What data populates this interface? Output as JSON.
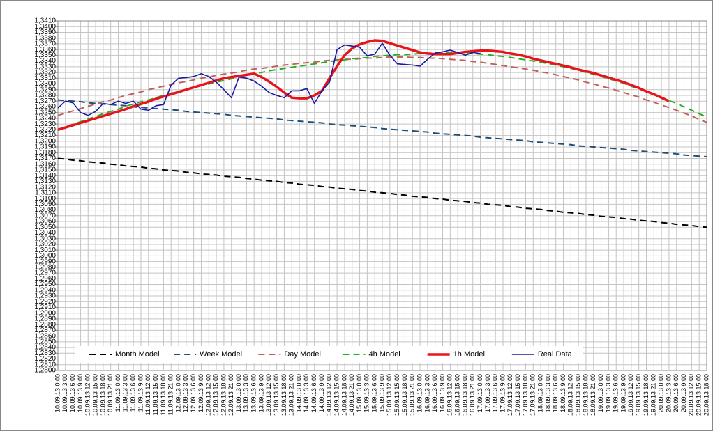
{
  "chart_data": {
    "type": "line",
    "categories": [
      "10.09.13 0:00",
      "10.09.13 3:00",
      "10.09.13 6:00",
      "10.09.13 9:00",
      "10.09.13 12:00",
      "10.09.13 15:00",
      "10.09.13 18:00",
      "10.09.13 21:00",
      "11.09.13 0:00",
      "11.09.13 3:00",
      "11.09.13 6:00",
      "11.09.13 9:00",
      "11.09.13 12:00",
      "11.09.13 15:00",
      "11.09.13 18:00",
      "11.09.13 21:00",
      "12.09.13 0:00",
      "12.09.13 3:00",
      "12.09.13 6:00",
      "12.09.13 9:00",
      "12.09.13 12:00",
      "12.09.13 15:00",
      "12.09.13 18:00",
      "12.09.13 21:00",
      "13.09.13 0:00",
      "13.09.13 3:00",
      "13.09.13 6:00",
      "13.09.13 9:00",
      "13.09.13 12:00",
      "13.09.13 15:00",
      "13.09.13 18:00",
      "13.09.13 21:00",
      "14.09.13 0:00",
      "14.09.13 3:00",
      "14.09.13 6:00",
      "14.09.13 9:00",
      "14.09.13 12:00",
      "14.09.13 15:00",
      "14.09.13 18:00",
      "14.09.13 21:00",
      "15.09.13 0:00",
      "15.09.13 3:00",
      "15.09.13 6:00",
      "15.09.13 9:00",
      "15.09.13 12:00",
      "15.09.13 15:00",
      "15.09.13 18:00",
      "15.09.13 21:00",
      "16.09.13 0:00",
      "16.09.13 3:00",
      "16.09.13 6:00",
      "16.09.13 9:00",
      "16.09.13 12:00",
      "16.09.13 15:00",
      "16.09.13 18:00",
      "16.09.13 21:00",
      "17.09.13 0:00",
      "17.09.13 3:00",
      "17.09.13 6:00",
      "17.09.13 9:00",
      "17.09.13 12:00",
      "17.09.13 15:00",
      "17.09.13 18:00",
      "17.09.13 21:00",
      "18.09.13 0:00",
      "18.09.13 3:00",
      "18.09.13 6:00",
      "18.09.13 9:00",
      "18.09.13 12:00",
      "18.09.13 15:00",
      "18.09.13 18:00",
      "18.09.13 21:00",
      "19.09.13 0:00",
      "19.09.13 3:00",
      "19.09.13 6:00",
      "19.09.13 9:00",
      "19.09.13 12:00",
      "19.09.13 15:00",
      "19.09.13 18:00",
      "19.09.13 21:00",
      "20.09.13 0:00",
      "20.09.13 3:00",
      "20.09.13 6:00",
      "20.09.13 9:00",
      "20.09.13 12:00",
      "20.09.13 15:00",
      "20.09.13 18:00"
    ],
    "series": [
      {
        "name": "Month Model",
        "color": "#000000",
        "style": "dashed",
        "values": [
          1.317,
          1.3169,
          1.3167,
          1.3166,
          1.3164,
          1.3163,
          1.3162,
          1.316,
          1.3159,
          1.3157,
          1.3156,
          1.3155,
          1.3153,
          1.3152,
          1.315,
          1.3149,
          1.3148,
          1.3146,
          1.3145,
          1.3143,
          1.3142,
          1.3141,
          1.3139,
          1.3138,
          1.3137,
          1.3135,
          1.3134,
          1.3132,
          1.3131,
          1.313,
          1.3128,
          1.3127,
          1.3125,
          1.3124,
          1.3123,
          1.3121,
          1.312,
          1.3118,
          1.3117,
          1.3116,
          1.3114,
          1.3113,
          1.3111,
          1.311,
          1.3109,
          1.3107,
          1.3106,
          1.3104,
          1.3103,
          1.3102,
          1.31,
          1.3099,
          1.3097,
          1.3096,
          1.3095,
          1.3093,
          1.3092,
          1.309,
          1.3089,
          1.3088,
          1.3086,
          1.3085,
          1.3083,
          1.3082,
          1.3081,
          1.3079,
          1.3078,
          1.3076,
          1.3075,
          1.3074,
          1.3072,
          1.3071,
          1.3069,
          1.3068,
          1.3067,
          1.3065,
          1.3064,
          1.3062,
          1.3061,
          1.306,
          1.3058,
          1.3057,
          1.3055,
          1.3054,
          1.3053,
          1.3051,
          1.305
        ]
      },
      {
        "name": "Week Model",
        "color": "#1f4e79",
        "style": "dashed",
        "values": [
          1.3272,
          1.3271,
          1.327,
          1.3269,
          1.3267,
          1.3266,
          1.3265,
          1.3264,
          1.3263,
          1.3262,
          1.326,
          1.3259,
          1.3258,
          1.3257,
          1.3256,
          1.3255,
          1.3254,
          1.3252,
          1.3251,
          1.325,
          1.3249,
          1.3248,
          1.3247,
          1.3245,
          1.3244,
          1.3243,
          1.3242,
          1.3241,
          1.324,
          1.3239,
          1.3237,
          1.3236,
          1.3235,
          1.3234,
          1.3233,
          1.3232,
          1.323,
          1.3229,
          1.3228,
          1.3227,
          1.3226,
          1.3225,
          1.3224,
          1.3222,
          1.3221,
          1.322,
          1.3219,
          1.3218,
          1.3217,
          1.3216,
          1.3214,
          1.3213,
          1.3212,
          1.3211,
          1.321,
          1.3209,
          1.3207,
          1.3206,
          1.3205,
          1.3204,
          1.3203,
          1.3202,
          1.3201,
          1.3199,
          1.3198,
          1.3197,
          1.3196,
          1.3195,
          1.3194,
          1.3192,
          1.3191,
          1.319,
          1.3189,
          1.3188,
          1.3187,
          1.3186,
          1.3184,
          1.3183,
          1.3182,
          1.3181,
          1.318,
          1.3179,
          1.3178,
          1.3176,
          1.3175,
          1.3174,
          1.3173
        ]
      },
      {
        "name": "Day Model",
        "color": "#c0605a",
        "style": "dashed",
        "values": [
          1.3245,
          1.3249,
          1.3253,
          1.3257,
          1.3261,
          1.3265,
          1.3269,
          1.3272,
          1.3276,
          1.328,
          1.3283,
          1.3286,
          1.329,
          1.3293,
          1.3296,
          1.3299,
          1.3302,
          1.3304,
          1.3307,
          1.331,
          1.3312,
          1.3315,
          1.3317,
          1.3319,
          1.3321,
          1.3324,
          1.3326,
          1.3327,
          1.3329,
          1.3331,
          1.3333,
          1.3334,
          1.3336,
          1.3337,
          1.3338,
          1.334,
          1.3341,
          1.3342,
          1.3343,
          1.3343,
          1.3344,
          1.3345,
          1.3345,
          1.3346,
          1.3347,
          1.3347,
          1.3347,
          1.3346,
          1.3346,
          1.3345,
          1.3345,
          1.3344,
          1.3343,
          1.3342,
          1.3341,
          1.3339,
          1.3338,
          1.3336,
          1.3334,
          1.3332,
          1.333,
          1.3328,
          1.3326,
          1.3324,
          1.3321,
          1.3319,
          1.3316,
          1.3313,
          1.331,
          1.3307,
          1.3303,
          1.33,
          1.3296,
          1.3293,
          1.3289,
          1.3285,
          1.3281,
          1.3277,
          1.3272,
          1.3268,
          1.3263,
          1.3259,
          1.3254,
          1.3249,
          1.3244,
          1.3238,
          1.3233
        ]
      },
      {
        "name": "4h Model",
        "color": "#22b022",
        "style": "dashed",
        "values": [
          1.322,
          1.3225,
          1.323,
          1.3234,
          1.3239,
          1.3243,
          1.3248,
          1.3252,
          1.3256,
          1.3261,
          1.3265,
          1.3269,
          1.3272,
          1.3276,
          1.328,
          1.3284,
          1.3287,
          1.3291,
          1.3294,
          1.3297,
          1.33,
          1.3303,
          1.3306,
          1.3309,
          1.3312,
          1.3315,
          1.3318,
          1.332,
          1.3323,
          1.3325,
          1.3327,
          1.3329,
          1.3331,
          1.3333,
          1.3335,
          1.3337,
          1.3339,
          1.3341,
          1.3342,
          1.3344,
          1.3345,
          1.3346,
          1.3348,
          1.3349,
          1.335,
          1.3351,
          1.3351,
          1.3352,
          1.3353,
          1.3353,
          1.3355,
          1.3355,
          1.3355,
          1.3354,
          1.3354,
          1.3353,
          1.3352,
          1.3351,
          1.3349,
          1.3348,
          1.3346,
          1.3344,
          1.3342,
          1.334,
          1.3338,
          1.3335,
          1.3333,
          1.333,
          1.3327,
          1.3324,
          1.332,
          1.3317,
          1.3313,
          1.3309,
          1.3305,
          1.3301,
          1.3296,
          1.3291,
          1.3287,
          1.3282,
          1.3277,
          1.3271,
          1.3266,
          1.326,
          1.3254,
          1.3248,
          1.3242
        ]
      },
      {
        "name": "1h Model",
        "color": "#e8141b",
        "style": "bold",
        "values": [
          1.322,
          1.3224,
          1.3228,
          1.3232,
          1.3236,
          1.324,
          1.3244,
          1.3248,
          1.3252,
          1.3256,
          1.3261,
          1.3265,
          1.3269,
          1.3274,
          1.3278,
          1.3282,
          1.3286,
          1.329,
          1.3294,
          1.3298,
          1.3302,
          1.3306,
          1.331,
          1.3312,
          1.3314,
          1.3316,
          1.3318,
          1.3312,
          1.3304,
          1.3295,
          1.3285,
          1.3276,
          1.3275,
          1.3275,
          1.328,
          1.3288,
          1.331,
          1.3331,
          1.335,
          1.3362,
          1.3369,
          1.3373,
          1.3376,
          1.3375,
          1.3371,
          1.3367,
          1.3363,
          1.3359,
          1.3355,
          1.3353,
          1.3352,
          1.3352,
          1.3352,
          1.3354,
          1.3356,
          1.3357,
          1.3358,
          1.3358,
          1.3357,
          1.3356,
          1.3353,
          1.3351,
          1.3348,
          1.3344,
          1.3341,
          1.3338,
          1.3335,
          1.3332,
          1.3329,
          1.3325,
          1.3322,
          1.3319,
          1.3315,
          1.3311,
          1.3307,
          1.3303,
          1.3298,
          1.3293,
          1.3287,
          1.3282,
          1.3276,
          1.327,
          null,
          null,
          null,
          null,
          null
        ]
      },
      {
        "name": "Real Data",
        "color": "#1a1aa0",
        "style": "solid",
        "values": [
          1.3258,
          1.327,
          1.3267,
          1.325,
          1.3245,
          1.3252,
          1.3266,
          1.3264,
          1.327,
          1.3266,
          1.327,
          1.3256,
          1.3254,
          1.3262,
          1.3264,
          1.3298,
          1.331,
          1.3311,
          1.3313,
          1.3318,
          1.3313,
          1.3303,
          1.329,
          1.3276,
          1.3312,
          1.331,
          1.3305,
          1.3296,
          1.3285,
          1.328,
          1.3276,
          1.3288,
          1.3288,
          1.3292,
          1.3266,
          1.3288,
          1.3303,
          1.336,
          1.3368,
          1.3366,
          1.3364,
          1.3349,
          1.3352,
          1.3371,
          1.335,
          1.3335,
          1.3334,
          1.3333,
          1.3331,
          1.3343,
          1.3354,
          1.3356,
          1.3359,
          1.3355,
          1.335,
          1.3355,
          1.3353,
          null,
          null,
          null,
          null,
          null,
          null,
          null,
          null,
          null,
          null,
          null,
          null,
          null,
          null,
          null,
          null,
          null,
          null,
          null,
          null,
          null,
          null,
          null,
          null,
          null,
          null,
          null,
          null,
          null,
          null
        ]
      }
    ],
    "ylim": [
      1.28,
      1.341
    ],
    "yticks": [
      {
        "value": 1.28,
        "label": "1,2800"
      },
      {
        "value": 1.281,
        "label": "1,2810"
      },
      {
        "value": 1.282,
        "label": "1,2820"
      },
      {
        "value": 1.283,
        "label": "1,2830"
      },
      {
        "value": 1.284,
        "label": "1,2840"
      },
      {
        "value": 1.285,
        "label": "1,2850"
      },
      {
        "value": 1.286,
        "label": "1,2860"
      },
      {
        "value": 1.287,
        "label": "1,2870"
      },
      {
        "value": 1.288,
        "label": "1,2880"
      },
      {
        "value": 1.289,
        "label": "1,2890"
      },
      {
        "value": 1.29,
        "label": "1,2900"
      },
      {
        "value": 1.291,
        "label": "1,2910"
      },
      {
        "value": 1.292,
        "label": "1,2920"
      },
      {
        "value": 1.293,
        "label": "1,2930"
      },
      {
        "value": 1.294,
        "label": "1,2940"
      },
      {
        "value": 1.295,
        "label": "1,2950"
      },
      {
        "value": 1.296,
        "label": "1,2960"
      },
      {
        "value": 1.297,
        "label": "1,2970"
      },
      {
        "value": 1.298,
        "label": "1,2980"
      },
      {
        "value": 1.299,
        "label": "1,2990"
      },
      {
        "value": 1.3,
        "label": "1,3000"
      },
      {
        "value": 1.301,
        "label": "1,3010"
      },
      {
        "value": 1.302,
        "label": "1,3020"
      },
      {
        "value": 1.303,
        "label": "1,3030"
      },
      {
        "value": 1.304,
        "label": "1,3040"
      },
      {
        "value": 1.305,
        "label": "1,3050"
      },
      {
        "value": 1.306,
        "label": "1,3060"
      },
      {
        "value": 1.307,
        "label": "1,3070"
      },
      {
        "value": 1.308,
        "label": "1,3080"
      },
      {
        "value": 1.309,
        "label": "1,3090"
      },
      {
        "value": 1.31,
        "label": "1,3100"
      },
      {
        "value": 1.311,
        "label": "1,3110"
      },
      {
        "value": 1.312,
        "label": "1,3120"
      },
      {
        "value": 1.313,
        "label": "1,3130"
      },
      {
        "value": 1.314,
        "label": "1,3140"
      },
      {
        "value": 1.315,
        "label": "1,3150"
      },
      {
        "value": 1.316,
        "label": "1,3160"
      },
      {
        "value": 1.317,
        "label": "1,3170"
      },
      {
        "value": 1.318,
        "label": "1,3180"
      },
      {
        "value": 1.319,
        "label": "1,3190"
      },
      {
        "value": 1.32,
        "label": "1,3200"
      },
      {
        "value": 1.321,
        "label": "1,3210"
      },
      {
        "value": 1.322,
        "label": "1,3220"
      },
      {
        "value": 1.323,
        "label": "1,3230"
      },
      {
        "value": 1.324,
        "label": "1,3240"
      },
      {
        "value": 1.325,
        "label": "1,3250"
      },
      {
        "value": 1.326,
        "label": "1,3260"
      },
      {
        "value": 1.327,
        "label": "1,3270"
      },
      {
        "value": 1.328,
        "label": "1,3280"
      },
      {
        "value": 1.329,
        "label": "1,3290"
      },
      {
        "value": 1.33,
        "label": "1,3300"
      },
      {
        "value": 1.331,
        "label": "1,3310"
      },
      {
        "value": 1.332,
        "label": "1,3320"
      },
      {
        "value": 1.333,
        "label": "1,3330"
      },
      {
        "value": 1.334,
        "label": "1,3340"
      },
      {
        "value": 1.335,
        "label": "1,3350"
      },
      {
        "value": 1.336,
        "label": "1,3360"
      },
      {
        "value": 1.337,
        "label": "1,3370"
      },
      {
        "value": 1.338,
        "label": "1,3380"
      },
      {
        "value": 1.339,
        "label": "1,3390"
      },
      {
        "value": 1.34,
        "label": "1,3400"
      },
      {
        "value": 1.341,
        "label": "1,3410"
      }
    ],
    "grid": true,
    "legend": "bottom"
  }
}
